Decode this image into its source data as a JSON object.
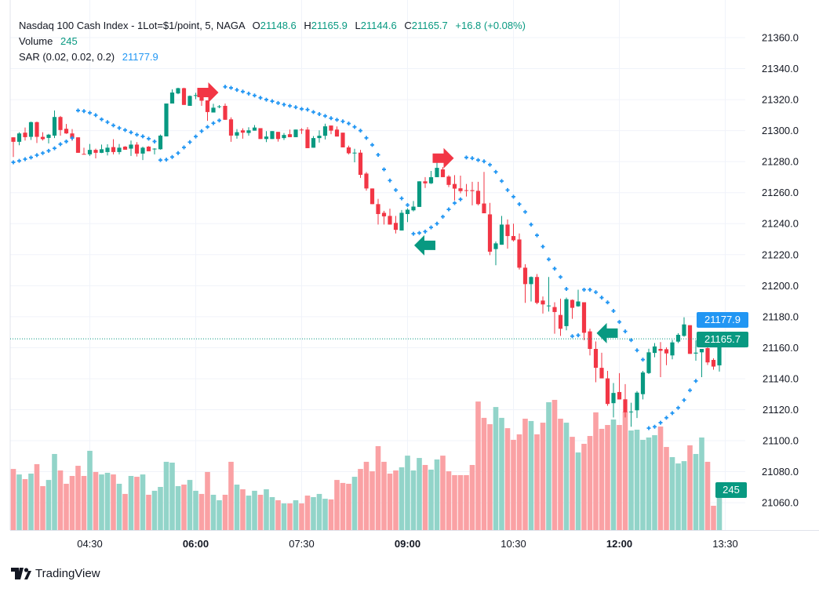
{
  "legend": {
    "title": "Nasdaq 100 Cash Index - 1Lot=$1/point, 5, NAGA",
    "o_label": "O",
    "o": "21148.6",
    "h_label": "H",
    "h": "21165.9",
    "l_label": "L",
    "l": "21144.6",
    "c_label": "C",
    "c": "21165.7",
    "change": "+16.8 (+0.08%)",
    "volume_label": "Volume",
    "volume": "245",
    "sar_label": "SAR (0.02, 0.02, 0.2)",
    "sar": "21177.9"
  },
  "badges": {
    "sar": "21177.9",
    "last_price": "21165.7",
    "volume": "245"
  },
  "branding": {
    "name": "TradingView"
  },
  "colors": {
    "up": "#089981",
    "down": "#f23645",
    "volume_up": "#92d4c9",
    "volume_down": "#faa1a4",
    "sar": "#2196f3",
    "grid": "#f0f3fa"
  },
  "chart_data": {
    "type": "candlestick",
    "symbol": "Nasdaq 100 Cash Index",
    "interval_min": 5,
    "first_bar_time": "03:25",
    "ylim": [
      21050,
      21370
    ],
    "yticks": [
      "21360.0",
      "21340.0",
      "21320.0",
      "21300.0",
      "21280.0",
      "21260.0",
      "21240.0",
      "21220.0",
      "21200.0",
      "21180.0",
      "21160.0",
      "21140.0",
      "21120.0",
      "21100.0",
      "21080.0",
      "21060.0"
    ],
    "xticks": [
      {
        "label": "04:30",
        "bold": false
      },
      {
        "label": "06:00",
        "bold": true
      },
      {
        "label": "07:30",
        "bold": false
      },
      {
        "label": "09:00",
        "bold": true
      },
      {
        "label": "10:30",
        "bold": false
      },
      {
        "label": "12:00",
        "bold": true
      },
      {
        "label": "13:30",
        "bold": false
      }
    ],
    "grid": true,
    "ohlc": [
      [
        21295.7,
        21295.7,
        21283,
        21292.8
      ],
      [
        21292.8,
        21299,
        21290.6,
        21298.2
      ],
      [
        21298.7,
        21302,
        21293.6,
        21295.8
      ],
      [
        21296,
        21305.8,
        21294,
        21305.5
      ],
      [
        21305.5,
        21305.8,
        21292,
        21296
      ],
      [
        21296,
        21299,
        21293.6,
        21294.5
      ],
      [
        21295.3,
        21297.9,
        21291.8,
        21297.4
      ],
      [
        21296.8,
        21313,
        21295.2,
        21308.8
      ],
      [
        21308.8,
        21309.5,
        21296.8,
        21300.4
      ],
      [
        21301.2,
        21304.3,
        21297.9,
        21298.2
      ],
      [
        21298.2,
        21301,
        21293.5,
        21295.2
      ],
      [
        21295.7,
        21295.7,
        21285.7,
        21285.7
      ],
      [
        21285,
        21289,
        21284.7,
        21284.7
      ],
      [
        21284.7,
        21291.4,
        21283.7,
        21287.6
      ],
      [
        21287.6,
        21288.4,
        21282.1,
        21285.7
      ],
      [
        21285.7,
        21291,
        21285.5,
        21288
      ],
      [
        21286.2,
        21291.2,
        21284,
        21289
      ],
      [
        21289.4,
        21294.5,
        21284.7,
        21286.2
      ],
      [
        21286.2,
        21291.4,
        21284.7,
        21289
      ],
      [
        21289.7,
        21290,
        21287.7,
        21287.7
      ],
      [
        21288.4,
        21293.6,
        21283.7,
        21291
      ],
      [
        21291,
        21292.6,
        21283.3,
        21285.2
      ],
      [
        21285.2,
        21289.7,
        21281,
        21289
      ],
      [
        21289.7,
        21290,
        21286.7,
        21286.7
      ],
      [
        21288,
        21288.7,
        21284.7,
        21288.4
      ],
      [
        21288,
        21297.5,
        21287.7,
        21296.8
      ],
      [
        21296.3,
        21317.5,
        21296.3,
        21317.5
      ],
      [
        21317.5,
        21326.6,
        21317.5,
        21324.6
      ],
      [
        21324,
        21327.7,
        21323.5,
        21327.4
      ],
      [
        21327.4,
        21327.7,
        21316.6,
        21316.6
      ],
      [
        21316,
        21322.7,
        21316,
        21322.4
      ],
      [
        21322.5,
        21324.4,
        21320.3,
        21322.9
      ],
      [
        21322.6,
        21323.5,
        21316,
        21319.3
      ],
      [
        21319.5,
        21319.5,
        21306.3,
        21312
      ],
      [
        21311.7,
        21317.3,
        21311.7,
        21314.8
      ],
      [
        21315.5,
        21316.5,
        21314.5,
        21315.7
      ],
      [
        21316,
        21317.5,
        21307,
        21307
      ],
      [
        21307.3,
        21308.6,
        21292.8,
        21296.8
      ],
      [
        21296.8,
        21301,
        21294.8,
        21299
      ],
      [
        21300.2,
        21301.5,
        21294.8,
        21298.7
      ],
      [
        21298.5,
        21302.2,
        21296.8,
        21300.2
      ],
      [
        21300,
        21303.6,
        21300,
        21302
      ],
      [
        21301.6,
        21301.6,
        21294.6,
        21294.6
      ],
      [
        21294.6,
        21299.7,
        21292.6,
        21296.2
      ],
      [
        21294.6,
        21299.7,
        21294.6,
        21299.7
      ],
      [
        21299.2,
        21299.2,
        21292.9,
        21294.6
      ],
      [
        21295.2,
        21298.5,
        21294,
        21297.2
      ],
      [
        21297.7,
        21300.7,
        21295.8,
        21295.8
      ],
      [
        21295.8,
        21300.7,
        21295.8,
        21300.7
      ],
      [
        21300.7,
        21301.6,
        21297.9,
        21300.2
      ],
      [
        21300.7,
        21302.3,
        21288.7,
        21288.7
      ],
      [
        21289,
        21296.5,
        21289,
        21295.2
      ],
      [
        21295.2,
        21300.2,
        21292.3,
        21296.7
      ],
      [
        21296.7,
        21304.5,
        21294.3,
        21302.8
      ],
      [
        21303.3,
        21303.3,
        21297.7,
        21300
      ],
      [
        21300.7,
        21302.7,
        21296.2,
        21296.2
      ],
      [
        21298.7,
        21298.7,
        21289.2,
        21289.2
      ],
      [
        21289.2,
        21290.3,
        21284.7,
        21285.4
      ],
      [
        21285.4,
        21288.3,
        21279.6,
        21285.8
      ],
      [
        21285.8,
        21287.6,
        21269.5,
        21271.5
      ],
      [
        21272.3,
        21273.3,
        21261.3,
        21262.7
      ],
      [
        21262.7,
        21262.7,
        21252.6,
        21252.6
      ],
      [
        21252.6,
        21256,
        21239.4,
        21246.2
      ],
      [
        21247,
        21248.3,
        21239.4,
        21244.7
      ],
      [
        21245,
        21249.7,
        21239.4,
        21239.4
      ],
      [
        21240.5,
        21245,
        21233.7,
        21236
      ],
      [
        21235.6,
        21248.8,
        21235.6,
        21247
      ],
      [
        21246.2,
        21249.9,
        21241,
        21249
      ],
      [
        21248.6,
        21254.6,
        21247.9,
        21251
      ],
      [
        21250.8,
        21267.3,
        21250.8,
        21267.3
      ],
      [
        21267.3,
        21270,
        21263,
        21266
      ],
      [
        21266,
        21274,
        21265.6,
        21270
      ],
      [
        21270,
        21281.7,
        21270,
        21276
      ],
      [
        21275,
        21276.5,
        21270,
        21270
      ],
      [
        21270.4,
        21271.3,
        21263.6,
        21265
      ],
      [
        21265.6,
        21271.3,
        21255,
        21262.6
      ],
      [
        21262.8,
        21271,
        21259.6,
        21261
      ],
      [
        21261.6,
        21265.6,
        21257.5,
        21261.4
      ],
      [
        21261.6,
        21267,
        21251.8,
        21261
      ],
      [
        21261.2,
        21267,
        21251.8,
        21252.6
      ],
      [
        21253,
        21273.4,
        21246.7,
        21246.7
      ],
      [
        21246,
        21253.4,
        21219.7,
        21221.9
      ],
      [
        21223.6,
        21228.5,
        21213.2,
        21227.3
      ],
      [
        21226.4,
        21245,
        21226.4,
        21239.4
      ],
      [
        21239.4,
        21242.7,
        21223.9,
        21232
      ],
      [
        21232,
        21240,
        21228.5,
        21229.3
      ],
      [
        21229.8,
        21233.7,
        21210.4,
        21211.6
      ],
      [
        21211.6,
        21213.8,
        21188.9,
        21201
      ],
      [
        21201,
        21206,
        21189.8,
        21205.6
      ],
      [
        21205.6,
        21207.5,
        21188,
        21188.9
      ],
      [
        21190.4,
        21193,
        21182,
        21187.9
      ],
      [
        21187,
        21205.6,
        21183.3,
        21187.2
      ],
      [
        21186.2,
        21189.3,
        21169,
        21183
      ],
      [
        21181.1,
        21191.6,
        21167.6,
        21172.2
      ],
      [
        21173.9,
        21192.3,
        21171.2,
        21191.3
      ],
      [
        21190.8,
        21191.1,
        21178.6,
        21185.7
      ],
      [
        21186.7,
        21197.4,
        21186.4,
        21189.8
      ],
      [
        21189.3,
        21189.3,
        21164.8,
        21169.6
      ],
      [
        21170.5,
        21172.2,
        21155,
        21159.2
      ],
      [
        21159.2,
        21164,
        21137.7,
        21147
      ],
      [
        21147,
        21156.7,
        21140.2,
        21140.2
      ],
      [
        21140.2,
        21145,
        21122.5,
        21123.7
      ],
      [
        21124.2,
        21137.2,
        21115,
        21130.8
      ],
      [
        21131.4,
        21143.6,
        21126.6,
        21126.6
      ],
      [
        21126.7,
        21136.5,
        21115,
        21118.3
      ],
      [
        21118.3,
        21124.5,
        21109,
        21118.8
      ],
      [
        21119.6,
        21132,
        21114.6,
        21131
      ],
      [
        21130,
        21145,
        21126.6,
        21144
      ],
      [
        21143.6,
        21159.3,
        21143,
        21157
      ],
      [
        21156.6,
        21163,
        21153.8,
        21160.8
      ],
      [
        21159.2,
        21163.6,
        21141,
        21158
      ],
      [
        21159,
        21160.2,
        21148.7,
        21156.3
      ],
      [
        21155,
        21165,
        21152.5,
        21163.4
      ],
      [
        21163.9,
        21169.3,
        21163,
        21168.3
      ],
      [
        21167.6,
        21179.6,
        21167,
        21175
      ],
      [
        21174.5,
        21174.5,
        21156,
        21156
      ],
      [
        21156.2,
        21164.8,
        21151.6,
        21156.8
      ],
      [
        21157,
        21159.2,
        21141,
        21159.2
      ],
      [
        21159.7,
        21160.9,
        21148.8,
        21150.5
      ],
      [
        21152.1,
        21153.2,
        21145.8,
        21147.8
      ],
      [
        21148.6,
        21165.9,
        21144.6,
        21165.7
      ]
    ],
    "volume": [
      367,
      334,
      306,
      339,
      396,
      264,
      301,
      457,
      358,
      278,
      325,
      386,
      325,
      476,
      349,
      334,
      344,
      334,
      278,
      217,
      325,
      320,
      334,
      212,
      236,
      259,
      410,
      405,
      264,
      273,
      301,
      236,
      217,
      349,
      212,
      179,
      212,
      410,
      273,
      245,
      207,
      236,
      212,
      245,
      198,
      179,
      160,
      160,
      179,
      160,
      207,
      198,
      217,
      188,
      184,
      301,
      283,
      278,
      320,
      367,
      410,
      353,
      504,
      410,
      339,
      358,
      377,
      447,
      358,
      433,
      391,
      363,
      424,
      447,
      353,
      330,
      330,
      330,
      391,
      772,
      674,
      636,
      739,
      674,
      612,
      542,
      575,
      669,
      655,
      575,
      645,
      768,
      782,
      669,
      645,
      560,
      466,
      518,
      565,
      707,
      608,
      631,
      664,
      631,
      711,
      598,
      603,
      542,
      556,
      570,
      622,
      499,
      438,
      400,
      414,
      509,
      457,
      556,
      410,
      146,
      245
    ],
    "sar": [
      21279.6,
      21280.5,
      21281.6,
      21282.7,
      21284.2,
      21285.5,
      21287,
      21288.6,
      21291.3,
      21293,
      21295.2,
      21313,
      21312.6,
      21311.5,
      21310,
      21307.3,
      21305.5,
      21303.4,
      21301.7,
      21300.4,
      21298.9,
      21297.4,
      21296.3,
      21294.8,
      21293,
      21281,
      21281.3,
      21283,
      21285.5,
      21289.2,
      21292.6,
      21296.2,
      21299.7,
      21302.4,
      21304.8,
      21306.6,
      21328.3,
      21327.6,
      21326.3,
      21325.2,
      21323.9,
      21322.7,
      21321.2,
      21320,
      21319,
      21317.8,
      21316.8,
      21316,
      21315.1,
      21314,
      21313.6,
      21312,
      21310.7,
      21309.5,
      21308,
      21307,
      21306,
      21304.6,
      21302.4,
      21300,
      21295.3,
      21290.8,
      21284.4,
      21275,
      21267.8,
      21261.7,
      21256.3,
      21252,
      21233.5,
      21234,
      21234.9,
      21237.6,
      21240,
      21244.5,
      21249.2,
      21253.3,
      21255.7,
      21282.7,
      21282.2,
      21281,
      21280.2,
      21278,
      21273.4,
      21267.5,
      21261.7,
      21257.4,
      21252.6,
      21247.6,
      21239.4,
      21232.5,
      21225.2,
      21217,
      21211,
      21205.6,
      21197.9,
      21167.4,
      21168,
      21197.4,
      21197.4,
      21195.8,
      21192.3,
      21189.2,
      21183.7,
      21176.6,
      21170.5,
      21164.9,
      21158.3,
      21152.3,
      21108.1,
      21109,
      21111.6,
      21114.8,
      21117.8,
      21121.2,
      21126.2,
      21132.5,
      21138.5,
      21179.8,
      21179.2,
      21178.2,
      21177.9
    ],
    "signals": [
      {
        "type": "sell",
        "direction": "right",
        "time": "06:10",
        "price": 21324.6
      },
      {
        "type": "buy",
        "direction": "left",
        "time": "09:15",
        "price": 21226
      },
      {
        "type": "sell",
        "direction": "right",
        "time": "09:30",
        "price": 21282.2
      },
      {
        "type": "buy",
        "direction": "left",
        "time": "11:50",
        "price": 21169.4
      }
    ],
    "last_price": 21165.7,
    "last_sar": 21177.9,
    "last_volume": 245
  }
}
